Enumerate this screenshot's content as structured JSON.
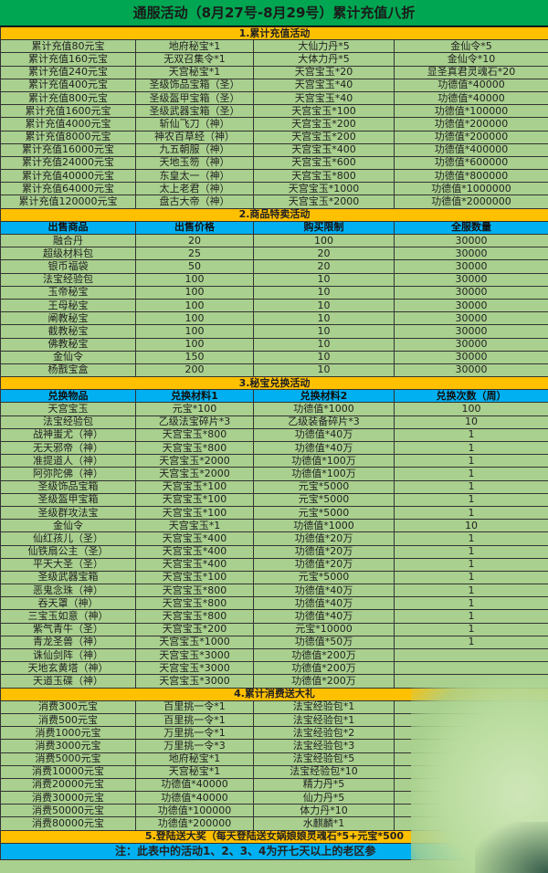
{
  "title": "通服活动（8月27号-8月29号）累计充值八折",
  "s1": {
    "title": "1.累计充值活动",
    "rows": [
      [
        "累计充值80元宝",
        "地府秘宝*1",
        "大仙力丹*5",
        "金仙令*5"
      ],
      [
        "累计充值160元宝",
        "无双召集令*1",
        "大体力丹*5",
        "金仙令*10"
      ],
      [
        "累计充值240元宝",
        "天宫秘宝*1",
        "天宫宝玉*20",
        "显圣真君灵魂石*20"
      ],
      [
        "累计充值400元宝",
        "圣级饰品宝箱（圣）",
        "天宫宝玉*40",
        "功德值*40000"
      ],
      [
        "累计充值800元宝",
        "圣级盔甲宝箱（圣）",
        "天宫宝玉*40",
        "功德值*40000"
      ],
      [
        "累计充值1600元宝",
        "圣级武器宝箱（圣）",
        "天宫宝玉*100",
        "功德值*100000"
      ],
      [
        "累计充值4000元宝",
        "斩仙飞刀（神）",
        "天宫宝玉*200",
        "功德值*200000"
      ],
      [
        "累计充值8000元宝",
        "神农百草经（神）",
        "天宫宝玉*200",
        "功德值*200000"
      ],
      [
        "累计充值16000元宝",
        "九五朝服（神）",
        "天宫宝玉*400",
        "功德值*400000"
      ],
      [
        "累计充值24000元宝",
        "天地玉笏（神）",
        "天宫宝玉*600",
        "功德值*600000"
      ],
      [
        "累计充值40000元宝",
        "东皇太一（神）",
        "天宫宝玉*800",
        "功德值*800000"
      ],
      [
        "累计充值64000元宝",
        "太上老君（神）",
        "天宫宝玉*1000",
        "功德值*1000000"
      ],
      [
        "累计充值120000元宝",
        "盘古大帝（神）",
        "天宫宝玉*2000",
        "功德值*2000000"
      ]
    ]
  },
  "s2": {
    "title": "2.商品特卖活动",
    "headers": [
      "出售商品",
      "出售价格",
      "购买限制",
      "全服数量"
    ],
    "rows": [
      [
        "融合丹",
        "20",
        "100",
        "30000"
      ],
      [
        "超级材料包",
        "25",
        "20",
        "30000"
      ],
      [
        "银币福袋",
        "50",
        "20",
        "30000"
      ],
      [
        "法宝经验包",
        "100",
        "10",
        "30000"
      ],
      [
        "玉帝秘宝",
        "100",
        "10",
        "30000"
      ],
      [
        "王母秘宝",
        "100",
        "10",
        "30000"
      ],
      [
        "阐教秘宝",
        "100",
        "10",
        "30000"
      ],
      [
        "截教秘宝",
        "100",
        "10",
        "30000"
      ],
      [
        "佛教秘宝",
        "100",
        "10",
        "30000"
      ],
      [
        "金仙令",
        "150",
        "10",
        "30000"
      ],
      [
        "杨戬宝盒",
        "200",
        "10",
        "30000"
      ]
    ]
  },
  "s3": {
    "title": "3.秘宝兑换活动",
    "headers": [
      "兑换物品",
      "兑换材料1",
      "兑换材料2",
      "兑换次数（周）"
    ],
    "rows": [
      [
        "天宫宝玉",
        "元宝*100",
        "功德值*1000",
        "100"
      ],
      [
        "法宝经验包",
        "乙级法宝碎片*3",
        "乙级装备碎片*3",
        "10"
      ],
      [
        "战神蚩尤（神）",
        "天宫宝玉*800",
        "功德值*40万",
        "1"
      ],
      [
        "无天邪帝（神）",
        "天宫宝玉*800",
        "功德值*40万",
        "1"
      ],
      [
        "准提道人（神）",
        "天宫宝玉*2000",
        "功德值*100万",
        "1"
      ],
      [
        "阿弥陀佛（神）",
        "天宫宝玉*2000",
        "功德值*100万",
        "1"
      ],
      [
        "圣级饰品宝箱",
        "天宫宝玉*100",
        "元宝*5000",
        "1"
      ],
      [
        "圣级盔甲宝箱",
        "天宫宝玉*100",
        "元宝*5000",
        "1"
      ],
      [
        "圣级群攻法宝",
        "天宫宝玉*100",
        "元宝*5000",
        "1"
      ],
      [
        "金仙令",
        "天宫宝玉*1",
        "功德值*1000",
        "10"
      ],
      [
        "仙红孩儿（圣）",
        "天宫宝玉*400",
        "功德值*20万",
        "1"
      ],
      [
        "仙铁扇公主（圣）",
        "天宫宝玉*400",
        "功德值*20万",
        "1"
      ],
      [
        "平天大圣（圣）",
        "天宫宝玉*400",
        "功德值*20万",
        "1"
      ],
      [
        "圣级武器宝箱",
        "天宫宝玉*100",
        "元宝*5000",
        "1"
      ],
      [
        "恶鬼念珠（神）",
        "天宫宝玉*800",
        "功德值*40万",
        "1"
      ],
      [
        "吞天罩（神）",
        "天宫宝玉*800",
        "功德值*40万",
        "1"
      ],
      [
        "三宝玉如意（神）",
        "天宫宝玉*800",
        "功德值*40万",
        "1"
      ],
      [
        "紫气青牛（圣）",
        "天宫宝玉*200",
        "元宝*10000",
        "1"
      ],
      [
        "青龙圣兽（神）",
        "天宫宝玉*1000",
        "功德值*50万",
        "1"
      ],
      [
        "诛仙剑阵（神）",
        "天宫宝玉*3000",
        "功德值*200万",
        ""
      ],
      [
        "天地玄黄塔（神）",
        "天宫宝玉*3000",
        "功德值*200万",
        ""
      ],
      [
        "天道玉碟（神）",
        "天宫宝玉*3000",
        "功德值*200万",
        ""
      ]
    ]
  },
  "s4": {
    "title": "4.累计消费送大礼",
    "rows": [
      [
        "消费300元宝",
        "百里挑一令*1",
        "法宝经验包*1",
        ""
      ],
      [
        "消费500元宝",
        "百里挑一令*1",
        "法宝经验包*1",
        ""
      ],
      [
        "消费1000元宝",
        "万里挑一令*1",
        "法宝经验包*2",
        ""
      ],
      [
        "消费3000元宝",
        "万里挑一令*3",
        "法宝经验包*3",
        ""
      ],
      [
        "消费5000元宝",
        "地府秘宝*1",
        "法宝经验包*5",
        ""
      ],
      [
        "消费10000元宝",
        "天宫秘宝*1",
        "法宝经验包*10",
        ""
      ],
      [
        "消费20000元宝",
        "功德值*40000",
        "精力丹*5",
        ""
      ],
      [
        "消费30000元宝",
        "功德值*40000",
        "仙力丹*5",
        ""
      ],
      [
        "消费50000元宝",
        "功德值*100000",
        "体力丹*10",
        ""
      ],
      [
        "消费80000元宝",
        "功德值*200000",
        "水麒麟*1",
        ""
      ]
    ]
  },
  "s5": {
    "title": "5.登陆送大奖（每天登陆送女娲娘娘灵魂石*5+元宝*500"
  },
  "note": "注：此表中的活动1、2、3、4为开七天以上的老区参"
}
